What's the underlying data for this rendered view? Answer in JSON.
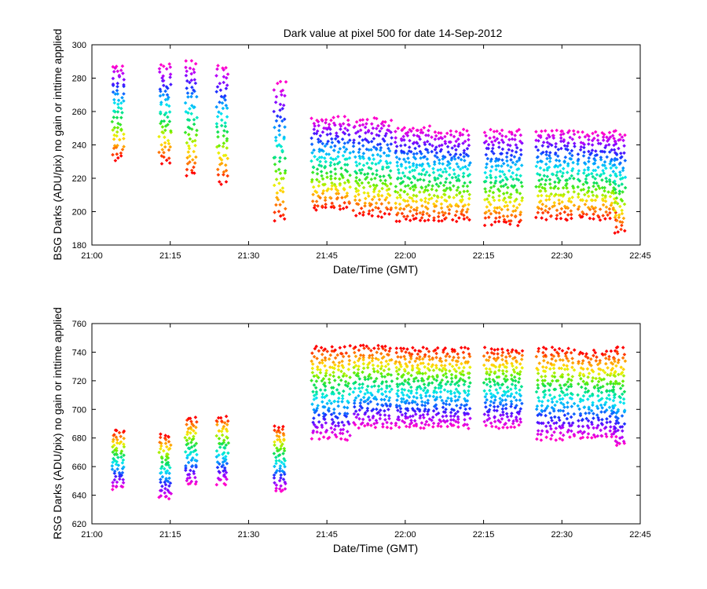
{
  "figure": {
    "title": "Dark value at pixel 500 for date 14-Sep-2012"
  },
  "chart_data": [
    {
      "type": "scatter",
      "title": "Dark value at pixel 500 for date 14-Sep-2012",
      "xlabel": "Date/Time (GMT)",
      "ylabel": "BSG Darks (ADU/pix) no gain or inttime applied",
      "xlim": [
        "21:00",
        "22:45"
      ],
      "xticks": [
        "21:00",
        "21:15",
        "21:30",
        "21:45",
        "22:00",
        "22:15",
        "22:30",
        "22:45"
      ],
      "ylim": [
        180,
        300
      ],
      "yticks": [
        180,
        200,
        220,
        240,
        260,
        280,
        300
      ],
      "grid": false,
      "color_gradient": [
        "#ff0000",
        "#ff8800",
        "#ffee00",
        "#66ee00",
        "#00dd66",
        "#00eeee",
        "#0099ff",
        "#2222ff",
        "#aa00ff",
        "#ff00cc"
      ],
      "series": [
        {
          "x": "21:05",
          "spread": [
            232,
            288
          ]
        },
        {
          "x": "21:14",
          "spread": [
            230,
            288
          ]
        },
        {
          "x": "21:19",
          "spread": [
            222,
            290
          ]
        },
        {
          "x": "21:25",
          "spread": [
            218,
            287
          ]
        },
        {
          "x": "21:36",
          "spread": [
            196,
            276
          ]
        },
        {
          "x": "21:42",
          "spread": [
            202,
            256
          ]
        },
        {
          "x": "21:50",
          "spread": [
            198,
            255
          ]
        },
        {
          "x": "21:58",
          "spread": [
            195,
            250
          ]
        },
        {
          "x": "22:05",
          "spread": [
            195,
            248
          ]
        },
        {
          "x": "22:15",
          "spread": [
            193,
            248
          ]
        },
        {
          "x": "22:25",
          "spread": [
            196,
            249
          ]
        },
        {
          "x": "22:33",
          "spread": [
            196,
            247
          ]
        },
        {
          "x": "22:41",
          "spread": [
            188,
            247
          ]
        }
      ]
    },
    {
      "type": "scatter",
      "xlabel": "Date/Time (GMT)",
      "ylabel": "RSG Darks (ADU/pix) no gain or inttime applied",
      "xlim": [
        "21:00",
        "22:45"
      ],
      "xticks": [
        "21:00",
        "21:15",
        "21:30",
        "21:45",
        "22:00",
        "22:15",
        "22:30",
        "22:45"
      ],
      "ylim": [
        620,
        760
      ],
      "yticks": [
        620,
        640,
        660,
        680,
        700,
        720,
        740,
        760
      ],
      "grid": false,
      "color_gradient": [
        "#ff0000",
        "#ff8800",
        "#ffee00",
        "#66ee00",
        "#00dd66",
        "#00eeee",
        "#0099ff",
        "#2222ff",
        "#aa00ff",
        "#ff00cc"
      ],
      "series": [
        {
          "x": "21:05",
          "spread": [
            645,
            685
          ]
        },
        {
          "x": "21:14",
          "spread": [
            638,
            682
          ]
        },
        {
          "x": "21:19",
          "spread": [
            648,
            694
          ]
        },
        {
          "x": "21:25",
          "spread": [
            648,
            695
          ]
        },
        {
          "x": "21:36",
          "spread": [
            643,
            688
          ]
        },
        {
          "x": "21:42",
          "spread": [
            680,
            743
          ]
        },
        {
          "x": "21:50",
          "spread": [
            688,
            744
          ]
        },
        {
          "x": "21:58",
          "spread": [
            688,
            742
          ]
        },
        {
          "x": "22:05",
          "spread": [
            688,
            742
          ]
        },
        {
          "x": "22:15",
          "spread": [
            688,
            742
          ]
        },
        {
          "x": "22:25",
          "spread": [
            680,
            742
          ]
        },
        {
          "x": "22:33",
          "spread": [
            680,
            740
          ]
        },
        {
          "x": "22:41",
          "spread": [
            675,
            742
          ]
        }
      ]
    }
  ]
}
